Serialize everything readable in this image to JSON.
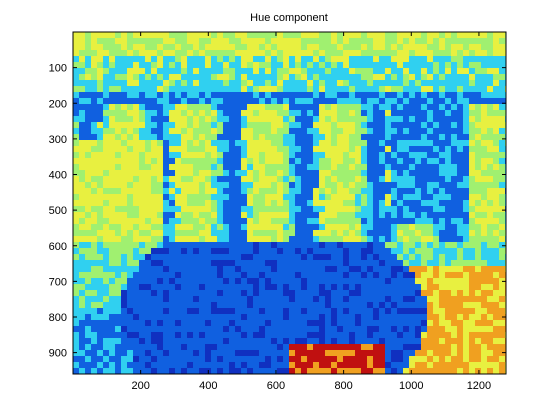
{
  "chart_data": {
    "type": "heatmap",
    "title": "Hue component",
    "xlabel": "",
    "ylabel": "",
    "xlim": [
      0,
      1280
    ],
    "ylim": [
      960,
      0
    ],
    "x_ticks": [
      200,
      400,
      600,
      800,
      1000,
      1200
    ],
    "y_ticks": [
      100,
      200,
      300,
      400,
      500,
      600,
      700,
      800,
      900
    ],
    "colormap": "jet",
    "grid": false,
    "legend": "none",
    "regions_description_colors": {
      "yellow": "#e8f040",
      "light-green": "#a0f070",
      "cyan": "#30d0f0",
      "blue": "#1060e0",
      "deep-blue": "#1030c0",
      "orange": "#f0a020",
      "red": "#c01010"
    }
  }
}
